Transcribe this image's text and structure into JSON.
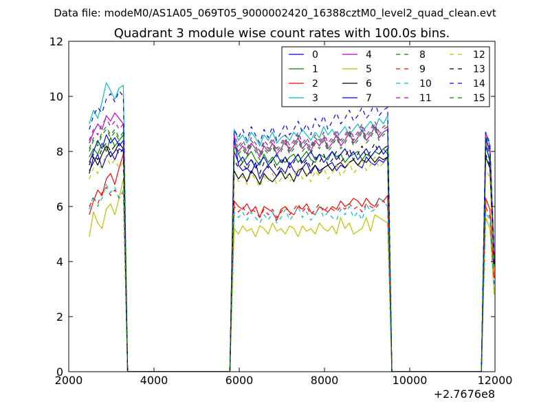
{
  "header": "Data file: modeM0/AS1A05_069T05_9000002420_16388cztM0_level2_quad_clean.evt",
  "chart_data": {
    "type": "line",
    "title": "Quadrant 3 module wise count rates with 100.0s bins.",
    "xlabel": "",
    "ylabel": "",
    "x_offset_label": "+2.7676e8",
    "xlim": [
      2000,
      12000
    ],
    "ylim": [
      0,
      12
    ],
    "xticks": [
      2000,
      4000,
      6000,
      8000,
      10000,
      12000
    ],
    "yticks": [
      0,
      2,
      4,
      6,
      8,
      10,
      12
    ],
    "grid": false,
    "legend_position": "top-right",
    "legend_columns": 4,
    "x": [
      2480,
      2580,
      2680,
      2780,
      2880,
      2980,
      3080,
      3180,
      3280,
      3380,
      3480,
      5780,
      5880,
      5980,
      6080,
      6180,
      6280,
      6380,
      6480,
      6580,
      6680,
      6780,
      6880,
      6980,
      7080,
      7180,
      7280,
      7380,
      7480,
      7580,
      7680,
      7780,
      7880,
      7980,
      8080,
      8180,
      8280,
      8380,
      8480,
      8580,
      8680,
      8780,
      8880,
      8980,
      9080,
      9180,
      9280,
      9380,
      9480,
      9580,
      9680,
      11680,
      11780,
      11880,
      11980
    ],
    "series": [
      {
        "name": "0",
        "color": "#0000ff",
        "dash": "solid",
        "values": [
          7.3,
          7.6,
          7.9,
          7.4,
          7.8,
          8.0,
          7.7,
          8.1,
          8.0,
          0,
          0,
          0,
          8.6,
          7.5,
          7.3,
          7.4,
          7.2,
          7.6,
          7.0,
          7.3,
          7.5,
          7.3,
          7.1,
          7.4,
          7.2,
          7.6,
          7.3,
          7.1,
          7.4,
          7.6,
          7.2,
          7.5,
          7.3,
          7.4,
          7.5,
          7.6,
          7.3,
          7.5,
          7.4,
          7.6,
          7.7,
          7.5,
          7.4,
          7.8,
          7.6,
          7.5,
          7.7,
          7.6,
          7.8,
          0,
          0,
          0,
          8.5,
          8.0,
          4.0
        ]
      },
      {
        "name": "1",
        "color": "#008000",
        "dash": "solid",
        "values": [
          7.8,
          8.1,
          7.9,
          8.3,
          8.0,
          8.5,
          8.2,
          8.4,
          8.6,
          0,
          0,
          0,
          8.4,
          7.9,
          7.6,
          7.8,
          8.0,
          7.7,
          7.5,
          7.9,
          7.6,
          7.8,
          7.5,
          7.7,
          7.6,
          7.8,
          7.9,
          7.6,
          7.8,
          8.0,
          7.7,
          7.6,
          7.9,
          7.8,
          7.7,
          8.0,
          7.8,
          7.9,
          7.6,
          7.8,
          7.9,
          8.0,
          7.7,
          7.9,
          7.8,
          8.0,
          7.9,
          8.1,
          7.9,
          0,
          0,
          0,
          8.3,
          7.6,
          3.9
        ]
      },
      {
        "name": "2",
        "color": "#ff0000",
        "dash": "solid",
        "values": [
          5.7,
          6.2,
          6.6,
          6.4,
          7.0,
          7.2,
          6.8,
          7.4,
          7.9,
          0,
          0,
          0,
          6.2,
          6.0,
          5.9,
          6.1,
          5.8,
          6.0,
          5.6,
          6.0,
          5.9,
          5.8,
          5.5,
          5.9,
          6.0,
          5.8,
          5.7,
          6.0,
          5.9,
          6.1,
          5.8,
          5.7,
          6.0,
          5.9,
          5.8,
          6.0,
          5.9,
          6.2,
          6.0,
          6.1,
          6.3,
          6.2,
          6.0,
          6.3,
          6.1,
          6.0,
          6.3,
          6.2,
          6.4,
          0,
          0,
          0,
          6.3,
          5.9,
          3.4
        ]
      },
      {
        "name": "3",
        "color": "#00bfbf",
        "dash": "solid",
        "values": [
          9.0,
          9.5,
          9.2,
          9.8,
          10.5,
          10.2,
          9.9,
          10.3,
          10.4,
          0,
          0,
          0,
          8.8,
          8.4,
          8.6,
          8.3,
          8.7,
          8.5,
          8.2,
          8.6,
          8.4,
          8.7,
          8.3,
          8.5,
          8.6,
          8.4,
          8.7,
          8.5,
          8.8,
          8.6,
          8.4,
          8.7,
          8.5,
          8.9,
          8.6,
          8.8,
          8.5,
          8.7,
          8.9,
          8.6,
          8.8,
          9.0,
          8.7,
          8.9,
          9.1,
          8.8,
          9.2,
          9.0,
          9.3,
          0,
          0,
          0,
          8.7,
          8.2,
          4.2
        ]
      },
      {
        "name": "4",
        "color": "#bf00bf",
        "dash": "solid",
        "values": [
          8.3,
          8.7,
          9.0,
          8.8,
          9.3,
          9.1,
          9.4,
          9.2,
          9.0,
          0,
          0,
          0,
          8.3,
          8.0,
          8.2,
          7.9,
          8.3,
          8.1,
          7.8,
          8.2,
          8.0,
          8.3,
          7.9,
          8.1,
          8.4,
          8.0,
          8.2,
          8.5,
          8.1,
          8.3,
          8.0,
          8.4,
          8.2,
          8.5,
          8.1,
          8.3,
          8.6,
          8.2,
          8.4,
          8.7,
          8.3,
          8.5,
          8.8,
          8.4,
          8.6,
          8.9,
          8.5,
          8.7,
          8.8,
          0,
          0,
          0,
          8.4,
          8.0,
          4.1
        ]
      },
      {
        "name": "5",
        "color": "#bfbf00",
        "dash": "solid",
        "values": [
          4.9,
          5.8,
          5.4,
          5.2,
          5.9,
          6.1,
          5.7,
          6.3,
          7.0,
          0,
          0,
          0,
          5.2,
          5.0,
          5.3,
          5.1,
          5.2,
          4.9,
          5.3,
          5.2,
          5.0,
          5.4,
          5.1,
          5.2,
          5.0,
          5.3,
          5.2,
          4.9,
          5.3,
          5.1,
          5.2,
          5.0,
          5.4,
          5.2,
          5.1,
          5.3,
          5.0,
          5.6,
          5.2,
          5.4,
          5.0,
          5.1,
          5.2,
          5.6,
          5.1,
          5.7,
          5.6,
          5.5,
          5.4,
          0,
          0,
          0,
          5.6,
          5.2,
          2.8
        ]
      },
      {
        "name": "6",
        "color": "#000000",
        "dash": "solid",
        "values": [
          7.2,
          7.8,
          7.5,
          7.9,
          8.2,
          7.8,
          8.0,
          8.3,
          8.1,
          0,
          0,
          0,
          7.3,
          7.0,
          7.2,
          6.9,
          7.3,
          7.1,
          6.8,
          7.2,
          7.0,
          6.9,
          7.1,
          7.3,
          7.0,
          7.2,
          6.9,
          7.3,
          7.4,
          7.1,
          7.3,
          7.5,
          7.2,
          7.4,
          7.5,
          7.3,
          7.5,
          7.6,
          7.4,
          7.6,
          7.7,
          7.5,
          7.7,
          7.6,
          7.8,
          7.6,
          7.8,
          7.7,
          7.8,
          0,
          0,
          0,
          7.8,
          7.4,
          3.8
        ]
      },
      {
        "name": "7",
        "color": "#0000ff",
        "dash": "solid",
        "values": [
          7.6,
          8.0,
          8.4,
          8.1,
          8.6,
          8.3,
          8.5,
          8.2,
          8.4,
          0,
          0,
          0,
          8.0,
          7.6,
          7.8,
          7.5,
          7.7,
          7.4,
          7.6,
          7.8,
          7.5,
          7.7,
          7.9,
          7.6,
          7.8,
          7.5,
          7.7,
          7.9,
          7.6,
          7.8,
          8.0,
          7.7,
          7.9,
          7.6,
          7.8,
          8.0,
          7.7,
          7.9,
          8.1,
          7.8,
          8.0,
          7.7,
          7.9,
          8.1,
          7.8,
          8.0,
          8.2,
          7.9,
          8.1,
          0,
          0,
          0,
          8.2,
          7.7,
          3.9
        ]
      },
      {
        "name": "8",
        "color": "#008000",
        "dash": "dashed",
        "values": [
          8.1,
          8.5,
          8.3,
          8.7,
          8.9,
          8.6,
          8.8,
          8.5,
          8.7,
          0,
          0,
          0,
          8.5,
          8.1,
          8.3,
          8.0,
          8.4,
          8.2,
          7.9,
          8.3,
          8.1,
          8.4,
          8.0,
          8.2,
          8.5,
          8.1,
          8.3,
          8.6,
          8.2,
          8.4,
          8.1,
          8.5,
          8.3,
          8.6,
          8.2,
          8.4,
          8.7,
          8.3,
          8.5,
          8.8,
          8.4,
          8.6,
          8.9,
          8.5,
          8.7,
          9.0,
          8.6,
          8.8,
          8.9,
          0,
          0,
          0,
          8.6,
          8.1,
          4.1
        ]
      },
      {
        "name": "9",
        "color": "#ff0000",
        "dash": "dashed",
        "values": [
          6.0,
          6.3,
          6.1,
          6.5,
          6.7,
          6.4,
          6.6,
          6.3,
          6.5,
          0,
          0,
          0,
          6.0,
          5.8,
          6.0,
          5.7,
          5.9,
          5.8,
          5.6,
          5.9,
          5.7,
          5.9,
          5.6,
          5.8,
          6.0,
          5.7,
          5.9,
          6.1,
          5.8,
          6.0,
          5.7,
          5.9,
          6.1,
          5.8,
          6.0,
          5.9,
          5.8,
          6.0,
          5.9,
          6.1,
          5.9,
          6.0,
          5.8,
          6.1,
          6.0,
          5.9,
          6.1,
          6.2,
          6.0,
          0,
          0,
          0,
          6.0,
          5.6,
          3.2
        ]
      },
      {
        "name": "10",
        "color": "#00bfbf",
        "dash": "dashed",
        "values": [
          5.9,
          6.4,
          6.0,
          6.3,
          6.8,
          6.5,
          6.7,
          6.3,
          6.6,
          0,
          0,
          0,
          5.8,
          5.6,
          5.8,
          5.5,
          5.8,
          5.6,
          5.4,
          5.7,
          5.5,
          5.8,
          5.4,
          5.6,
          5.9,
          5.5,
          5.7,
          6.0,
          5.6,
          5.8,
          5.5,
          5.7,
          6.0,
          5.6,
          5.8,
          5.6,
          5.5,
          5.9,
          5.7,
          6.0,
          5.6,
          5.8,
          5.5,
          6.1,
          5.8,
          5.9,
          6.3,
          6.2,
          6.0,
          0,
          0,
          0,
          5.8,
          5.5,
          3.0
        ]
      },
      {
        "name": "11",
        "color": "#bf00bf",
        "dash": "dashed",
        "values": [
          8.4,
          8.8,
          8.6,
          9.0,
          9.2,
          8.9,
          9.1,
          8.8,
          9.0,
          0,
          0,
          0,
          8.6,
          8.2,
          8.4,
          8.1,
          8.5,
          8.3,
          8.0,
          8.4,
          8.2,
          8.5,
          8.1,
          8.3,
          8.6,
          8.2,
          8.4,
          8.7,
          8.3,
          8.5,
          8.2,
          8.6,
          8.4,
          8.7,
          8.3,
          8.5,
          8.8,
          8.4,
          8.6,
          8.9,
          8.5,
          8.7,
          9.0,
          8.6,
          8.8,
          9.1,
          8.7,
          8.9,
          9.0,
          0,
          0,
          0,
          8.7,
          8.2,
          4.2
        ]
      },
      {
        "name": "12",
        "color": "#bfbf00",
        "dash": "dashed",
        "values": [
          7.0,
          7.4,
          7.2,
          7.6,
          7.8,
          7.5,
          7.7,
          7.4,
          7.6,
          0,
          0,
          0,
          7.2,
          6.9,
          7.1,
          6.8,
          7.2,
          7.0,
          6.7,
          7.1,
          6.9,
          7.2,
          6.8,
          7.0,
          7.3,
          6.9,
          7.1,
          7.4,
          7.0,
          7.2,
          6.9,
          7.3,
          7.1,
          7.4,
          7.0,
          7.2,
          7.5,
          7.1,
          7.3,
          7.6,
          7.2,
          7.4,
          7.7,
          7.3,
          7.5,
          7.8,
          7.4,
          7.6,
          7.7,
          0,
          0,
          0,
          7.4,
          7.0,
          3.7
        ]
      },
      {
        "name": "13",
        "color": "#000000",
        "dash": "dashed",
        "values": [
          7.5,
          7.9,
          7.7,
          8.1,
          8.3,
          8.0,
          8.2,
          7.9,
          8.1,
          0,
          0,
          0,
          7.7,
          7.4,
          7.6,
          7.3,
          7.7,
          7.5,
          7.2,
          7.6,
          7.4,
          7.7,
          7.3,
          7.5,
          7.8,
          7.4,
          7.6,
          7.9,
          7.5,
          7.7,
          7.4,
          7.8,
          7.6,
          7.9,
          7.5,
          7.7,
          8.0,
          7.6,
          7.8,
          8.1,
          7.7,
          7.9,
          8.2,
          7.8,
          8.0,
          8.3,
          7.9,
          8.1,
          8.2,
          0,
          0,
          0,
          7.9,
          7.5,
          3.9
        ]
      },
      {
        "name": "14",
        "color": "#0000ff",
        "dash": "dashed",
        "values": [
          8.8,
          9.3,
          9.6,
          9.4,
          9.9,
          10.1,
          9.8,
          10.2,
          10.0,
          0,
          0,
          0,
          8.8,
          8.5,
          8.8,
          8.4,
          8.9,
          8.6,
          8.3,
          8.8,
          8.5,
          8.9,
          8.4,
          8.7,
          9.0,
          8.6,
          8.8,
          9.1,
          8.7,
          9.0,
          8.6,
          9.2,
          8.9,
          9.3,
          8.8,
          9.1,
          9.4,
          9.0,
          9.2,
          9.5,
          9.1,
          9.3,
          9.6,
          9.2,
          9.4,
          9.8,
          9.3,
          9.5,
          9.6,
          0,
          0,
          0,
          8.7,
          8.3,
          4.3
        ]
      },
      {
        "name": "15",
        "color": "#008000",
        "dash": "dashed",
        "values": [
          8.0,
          8.4,
          8.2,
          8.6,
          8.8,
          8.5,
          8.7,
          8.4,
          8.6,
          0,
          0,
          0,
          8.2,
          7.9,
          8.1,
          7.8,
          8.2,
          8.0,
          7.7,
          8.1,
          7.9,
          8.2,
          7.8,
          8.0,
          8.3,
          7.9,
          8.1,
          8.4,
          8.0,
          8.2,
          7.9,
          8.3,
          8.1,
          8.4,
          8.0,
          8.2,
          8.5,
          8.1,
          8.3,
          8.6,
          8.2,
          8.4,
          8.7,
          8.3,
          8.5,
          8.8,
          8.4,
          8.6,
          8.7,
          0,
          0,
          0,
          8.3,
          7.9,
          4.0
        ]
      }
    ]
  }
}
